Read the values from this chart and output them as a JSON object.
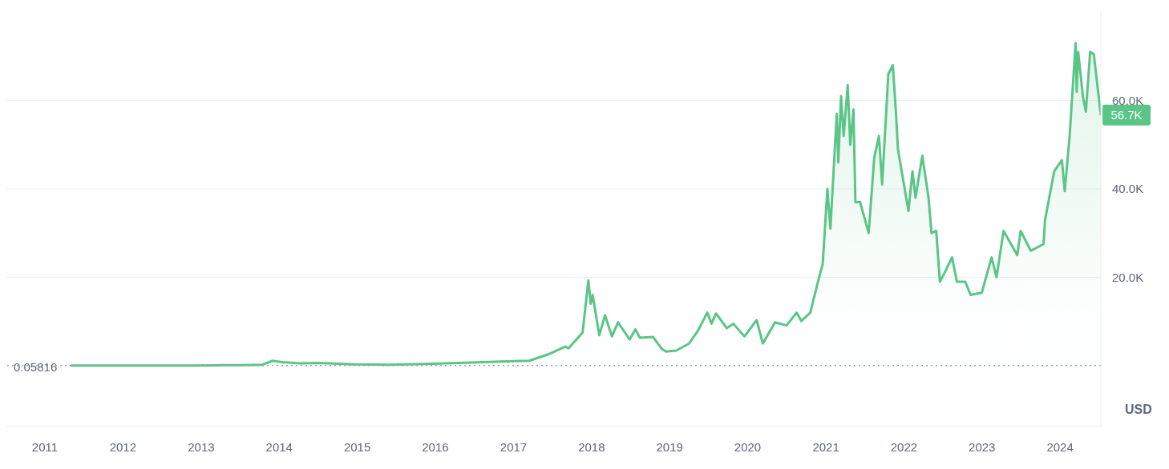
{
  "chart_data": {
    "type": "area",
    "ylabel": "USD",
    "x": [
      "2011-05-01",
      "2011-06-10",
      "2011-12-01",
      "2012-06-01",
      "2012-12-01",
      "2013-04-10",
      "2013-07-01",
      "2013-10-15",
      "2013-12-01",
      "2014-01-15",
      "2014-04-10",
      "2014-07-01",
      "2014-12-15",
      "2015-06-01",
      "2015-12-15",
      "2016-06-15",
      "2016-12-31",
      "2017-03-15",
      "2017-06-10",
      "2017-08-31",
      "2017-09-15",
      "2017-11-20",
      "2017-12-17",
      "2017-12-28",
      "2018-01-06",
      "2018-02-06",
      "2018-03-05",
      "2018-04-06",
      "2018-05-05",
      "2018-06-28",
      "2018-07-25",
      "2018-08-15",
      "2018-10-15",
      "2018-11-25",
      "2018-12-15",
      "2019-02-01",
      "2019-04-02",
      "2019-05-15",
      "2019-06-26",
      "2019-07-16",
      "2019-08-06",
      "2019-09-25",
      "2019-10-26",
      "2019-12-17",
      "2020-02-12",
      "2020-03-12",
      "2020-05-08",
      "2020-07-01",
      "2020-08-17",
      "2020-09-08",
      "2020-10-20",
      "2020-11-25",
      "2020-12-17",
      "2021-01-08",
      "2021-01-22",
      "2021-02-21",
      "2021-02-28",
      "2021-03-13",
      "2021-03-25",
      "2021-04-13",
      "2021-04-25",
      "2021-05-10",
      "2021-05-19",
      "2021-06-10",
      "2021-07-20",
      "2021-08-15",
      "2021-09-06",
      "2021-09-21",
      "2021-10-20",
      "2021-11-10",
      "2021-11-25",
      "2021-12-04",
      "2022-01-22",
      "2022-02-10",
      "2022-02-24",
      "2022-03-28",
      "2022-04-26",
      "2022-05-10",
      "2022-06-01",
      "2022-06-18",
      "2022-07-10",
      "2022-08-14",
      "2022-09-06",
      "2022-10-15",
      "2022-11-09",
      "2022-12-31",
      "2023-02-15",
      "2023-03-10",
      "2023-04-12",
      "2023-06-15",
      "2023-07-01",
      "2023-08-17",
      "2023-10-16",
      "2023-10-23",
      "2023-12-05",
      "2024-01-10",
      "2024-01-23",
      "2024-02-15",
      "2024-03-14",
      "2024-03-19",
      "2024-03-26",
      "2024-04-17",
      "2024-05-01",
      "2024-05-21",
      "2024-06-07",
      "2024-07-10"
    ],
    "series": [
      {
        "color": "#5ac587",
        "values": [
          0,
          0,
          0,
          0,
          0,
          100,
          100,
          200,
          1100,
          800,
          500,
          600,
          300,
          200,
          400,
          700,
          1000,
          1100,
          2500,
          4300,
          3900,
          7500,
          19300,
          14000,
          16000,
          6900,
          11400,
          6600,
          9800,
          5900,
          8200,
          6300,
          6500,
          3800,
          3200,
          3400,
          5000,
          8000,
          12000,
          9500,
          11800,
          8500,
          9500,
          6600,
          10300,
          5000,
          9800,
          9100,
          12000,
          10100,
          12000,
          19000,
          23000,
          40000,
          31000,
          57000,
          46000,
          61000,
          52000,
          63500,
          50000,
          58000,
          37000,
          37000,
          30000,
          47000,
          52000,
          41000,
          66000,
          68000,
          57000,
          49000,
          35000,
          44000,
          38000,
          47500,
          38000,
          30000,
          30500,
          19000,
          21000,
          24500,
          19000,
          19000,
          16000,
          16500,
          24500,
          20000,
          30500,
          25000,
          30500,
          26000,
          27500,
          33000,
          44000,
          46500,
          39500,
          52000,
          73000,
          62000,
          71000,
          61000,
          57500,
          71000,
          70500,
          56700
        ]
      }
    ],
    "xlim": [
      "2010-07-05",
      "2024-07-10"
    ],
    "xticks": [
      "2011",
      "2012",
      "2013",
      "2014",
      "2015",
      "2016",
      "2017",
      "2018",
      "2019",
      "2020",
      "2021",
      "2022",
      "2023",
      "2024"
    ],
    "ylim": [
      -13800,
      80400
    ],
    "yticks": [
      {
        "value": 20000,
        "label": "20.0K"
      },
      {
        "value": 40000,
        "label": "40.0K"
      },
      {
        "value": 60000,
        "label": "60.0K"
      }
    ],
    "grid": "y",
    "marker": "none",
    "line_style": "solid",
    "legend": false,
    "ref_lines": [
      {
        "axis": "y",
        "value": 0.05816,
        "label": "0.05816",
        "color": "#a0a4ad",
        "line_style": "dotted"
      }
    ],
    "annotations": [
      {
        "text": "56.7K",
        "x": "2024-07-10",
        "y": 56700
      }
    ]
  }
}
